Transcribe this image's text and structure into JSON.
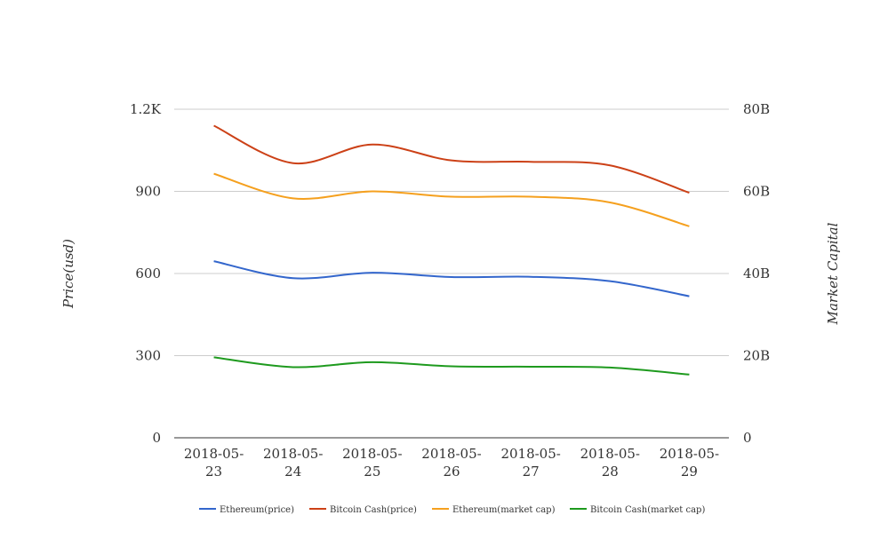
{
  "chart_data": {
    "type": "line",
    "categories": [
      "2018-05-23",
      "2018-05-24",
      "2018-05-25",
      "2018-05-26",
      "2018-05-27",
      "2018-05-28",
      "2018-05-29"
    ],
    "category_lines": [
      [
        "2018-05-",
        "23"
      ],
      [
        "2018-05-",
        "24"
      ],
      [
        "2018-05-",
        "25"
      ],
      [
        "2018-05-",
        "26"
      ],
      [
        "2018-05-",
        "27"
      ],
      [
        "2018-05-",
        "28"
      ],
      [
        "2018-05-",
        "29"
      ]
    ],
    "left_axis": {
      "label": "Price(usd)",
      "range": [
        0,
        1200
      ],
      "ticks": [
        0,
        300,
        600,
        900,
        1200
      ],
      "tick_labels": [
        "0",
        "300",
        "600",
        "900",
        "1.2K"
      ]
    },
    "right_axis": {
      "label": "Market Capital",
      "range": [
        0,
        80000000000
      ],
      "ticks": [
        0,
        20000000000,
        40000000000,
        60000000000,
        80000000000
      ],
      "tick_labels": [
        "0",
        "20B",
        "40B",
        "60B",
        "80B"
      ]
    },
    "grid": true,
    "legend_position": "bottom",
    "series": [
      {
        "name": "Ethereum(price)",
        "axis": "left",
        "color": "#3366cc",
        "values": [
          645,
          583,
          603,
          587,
          588,
          572,
          517
        ]
      },
      {
        "name": "Bitcoin Cash(price)",
        "axis": "left",
        "color": "#cc4117",
        "values": [
          1140,
          1003,
          1071,
          1013,
          1008,
          995,
          895
        ]
      },
      {
        "name": "Ethereum(market cap)",
        "axis": "right",
        "color": "#f5a01e",
        "values": [
          64300000000,
          58300000000,
          60000000000,
          58700000000,
          58700000000,
          57300000000,
          51500000000
        ]
      },
      {
        "name": "Bitcoin Cash(market cap)",
        "axis": "right",
        "color": "#1e9a1e",
        "values": [
          19600000000,
          17200000000,
          18400000000,
          17400000000,
          17300000000,
          17100000000,
          15400000000
        ]
      }
    ]
  }
}
